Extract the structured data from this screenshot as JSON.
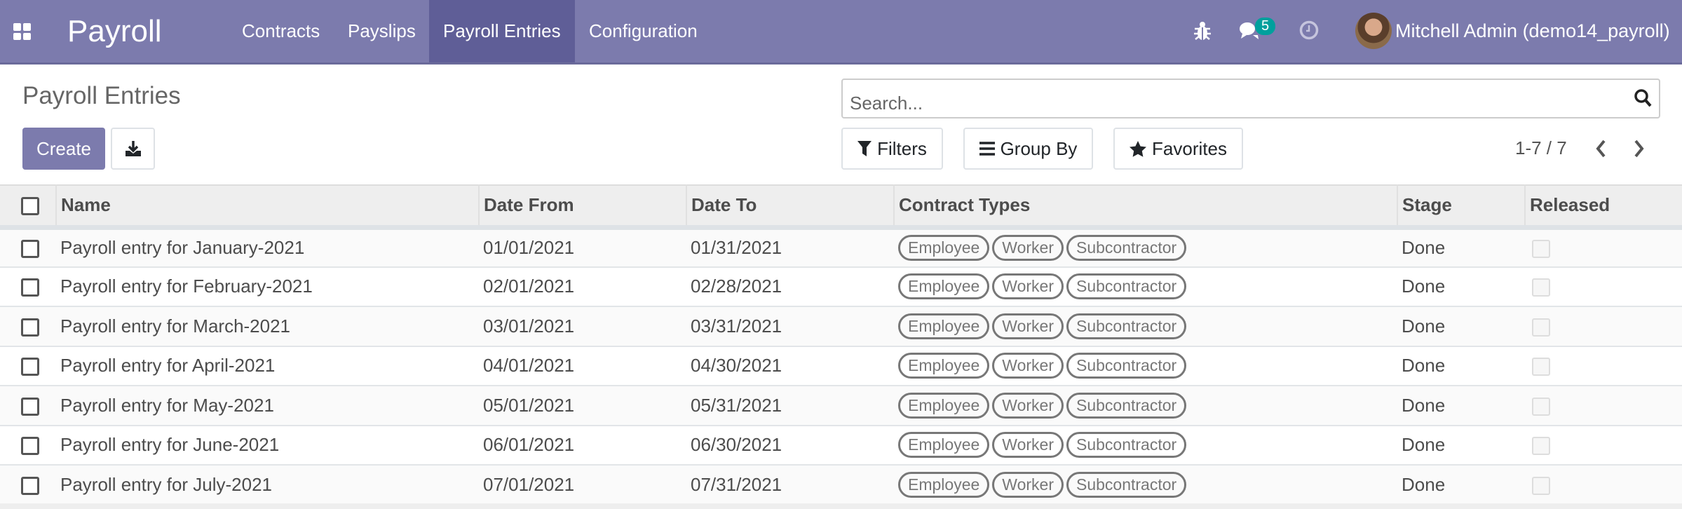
{
  "navbar": {
    "app_name": "Payroll",
    "menu": [
      "Contracts",
      "Payslips",
      "Payroll Entries",
      "Configuration"
    ],
    "active": "Payroll Entries",
    "message_count": "5",
    "user": "Mitchell Admin (demo14_payroll)",
    "brand_color": "#7c7bad",
    "badge_color": "#00a09d"
  },
  "page": {
    "title": "Payroll Entries",
    "create_label": "Create",
    "search_placeholder": "Search...",
    "filters_label": "Filters",
    "groupby_label": "Group By",
    "favorites_label": "Favorites",
    "pager": "1-7 / 7"
  },
  "table": {
    "columns": [
      "Name",
      "Date From",
      "Date To",
      "Contract Types",
      "Stage",
      "Released"
    ],
    "rows": [
      {
        "name": "Payroll entry for January-2021",
        "from": "01/01/2021",
        "to": "01/31/2021",
        "types": [
          "Employee",
          "Worker",
          "Subcontractor"
        ],
        "stage": "Done",
        "released": false
      },
      {
        "name": "Payroll entry for February-2021",
        "from": "02/01/2021",
        "to": "02/28/2021",
        "types": [
          "Employee",
          "Worker",
          "Subcontractor"
        ],
        "stage": "Done",
        "released": false
      },
      {
        "name": "Payroll entry for March-2021",
        "from": "03/01/2021",
        "to": "03/31/2021",
        "types": [
          "Employee",
          "Worker",
          "Subcontractor"
        ],
        "stage": "Done",
        "released": false
      },
      {
        "name": "Payroll entry for April-2021",
        "from": "04/01/2021",
        "to": "04/30/2021",
        "types": [
          "Employee",
          "Worker",
          "Subcontractor"
        ],
        "stage": "Done",
        "released": false
      },
      {
        "name": "Payroll entry for May-2021",
        "from": "05/01/2021",
        "to": "05/31/2021",
        "types": [
          "Employee",
          "Worker",
          "Subcontractor"
        ],
        "stage": "Done",
        "released": false
      },
      {
        "name": "Payroll entry for June-2021",
        "from": "06/01/2021",
        "to": "06/30/2021",
        "types": [
          "Employee",
          "Worker",
          "Subcontractor"
        ],
        "stage": "Done",
        "released": false
      },
      {
        "name": "Payroll entry for July-2021",
        "from": "07/01/2021",
        "to": "07/31/2021",
        "types": [
          "Employee",
          "Worker",
          "Subcontractor"
        ],
        "stage": "Done",
        "released": false
      }
    ]
  }
}
